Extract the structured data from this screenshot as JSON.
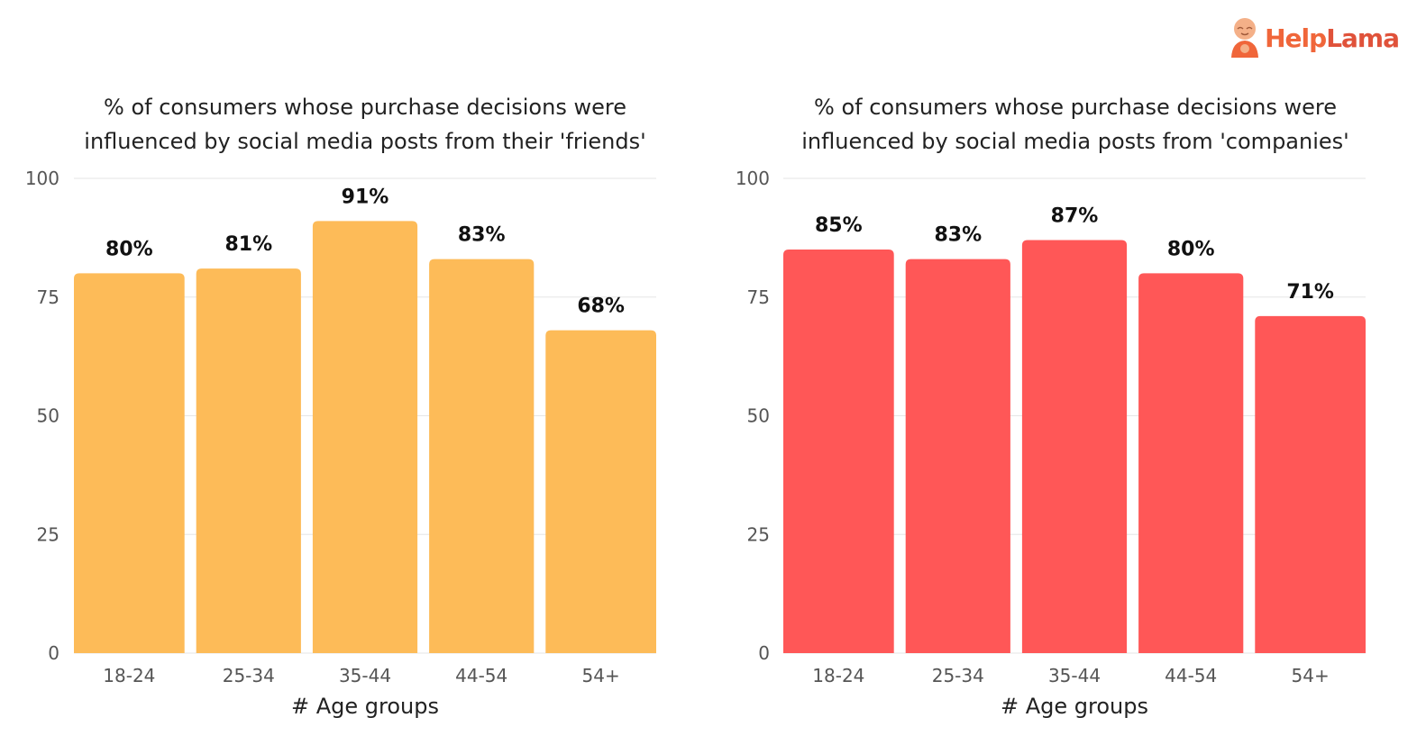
{
  "logo": {
    "text_part1": "Help",
    "text_part2": "Lama",
    "icon": "monk-mascot-icon"
  },
  "chart_data": [
    {
      "type": "bar",
      "title": "% of consumers whose purchase decisions were\ninfluenced by social media posts from their 'friends'",
      "xlabel": "# Age groups",
      "ylabel": "",
      "categories": [
        "18-24",
        "25-34",
        "35-44",
        "44-54",
        "54+"
      ],
      "values": [
        80,
        81,
        91,
        83,
        68
      ],
      "data_labels": [
        "80%",
        "81%",
        "91%",
        "83%",
        "68%"
      ],
      "yticks": [
        "0",
        "25",
        "50",
        "75",
        "100"
      ],
      "ylim": [
        0,
        100
      ],
      "grid": true,
      "color": "#fdbb58"
    },
    {
      "type": "bar",
      "title": "% of consumers whose purchase decisions were\ninfluenced by social media posts from 'companies'",
      "xlabel": "# Age groups",
      "ylabel": "",
      "categories": [
        "18-24",
        "25-34",
        "35-44",
        "44-54",
        "54+"
      ],
      "values": [
        85,
        83,
        87,
        80,
        71
      ],
      "data_labels": [
        "85%",
        "83%",
        "87%",
        "80%",
        "71%"
      ],
      "yticks": [
        "0",
        "25",
        "50",
        "75",
        "100"
      ],
      "ylim": [
        0,
        100
      ],
      "grid": true,
      "color": "#ff5757"
    }
  ]
}
